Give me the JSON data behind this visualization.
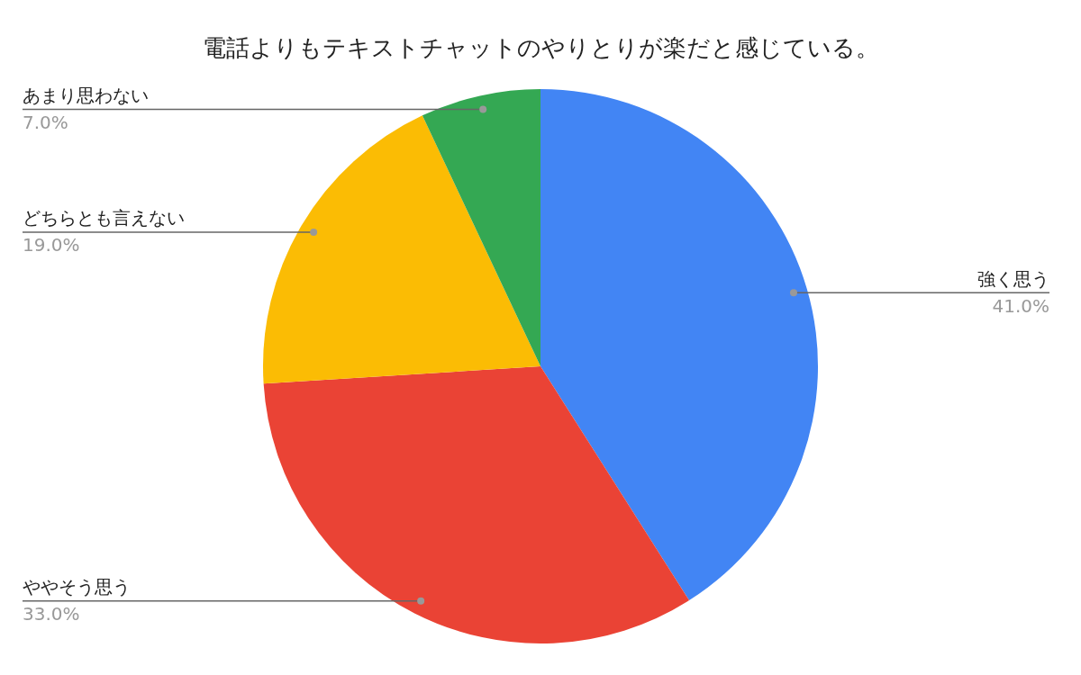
{
  "chart_data": {
    "type": "pie",
    "title": "電話よりもテキストチャットのやりとりが楽だと感じている。",
    "categories": [
      "強く思う",
      "ややそう思う",
      "どちらとも言えない",
      "あまり思わない"
    ],
    "values": [
      41,
      33,
      19,
      7
    ],
    "colors": [
      "#4285f4",
      "#ea4335",
      "#fbbc04",
      "#34a853"
    ],
    "value_labels": [
      "41.0%",
      "33.0%",
      "19.0%",
      "7.0%"
    ]
  }
}
